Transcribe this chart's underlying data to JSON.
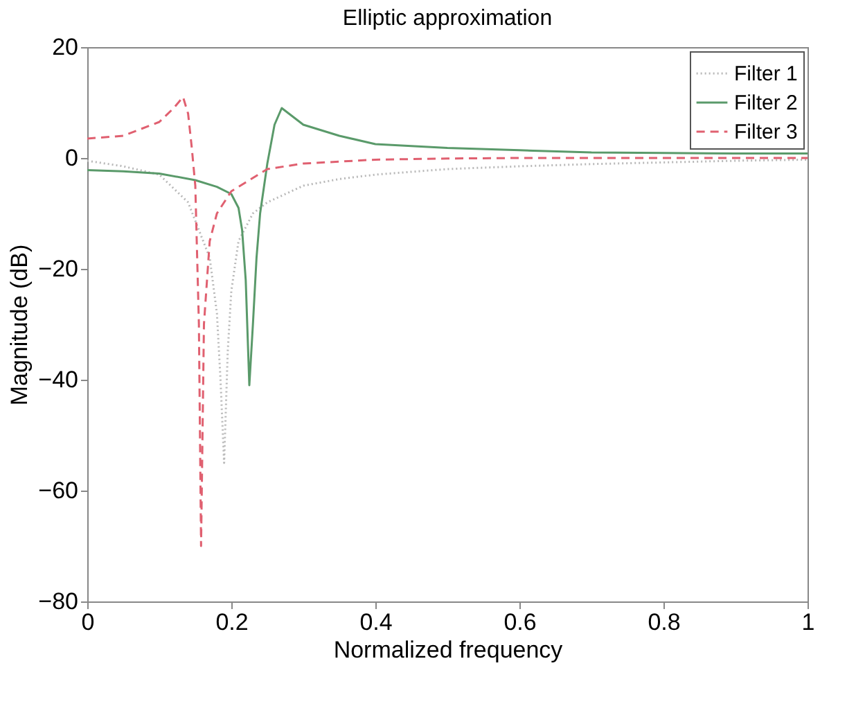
{
  "chart_data": {
    "type": "line",
    "title": "Elliptic approximation",
    "xlabel": "Normalized frequency",
    "ylabel": "Magnitude (dB)",
    "xlim": [
      0,
      1
    ],
    "ylim": [
      -80,
      20
    ],
    "xticks": [
      0,
      0.2,
      0.4,
      0.6,
      0.8,
      1
    ],
    "yticks": [
      -80,
      -60,
      -40,
      -20,
      0,
      20
    ],
    "grid": false,
    "legend": "top right",
    "series": [
      {
        "name": "Filter 1",
        "color": "#b8b8b8",
        "line_style": "dotted",
        "x": [
          0,
          0.05,
          0.1,
          0.14,
          0.17,
          0.18,
          0.185,
          0.19,
          0.195,
          0.2,
          0.21,
          0.23,
          0.25,
          0.3,
          0.35,
          0.4,
          0.5,
          0.6,
          0.7,
          0.8,
          0.9,
          1
        ],
        "values": [
          -0.5,
          -1.5,
          -3,
          -8,
          -18,
          -28,
          -40,
          -55,
          -35,
          -24,
          -15,
          -10,
          -8,
          -5,
          -3.8,
          -3,
          -2,
          -1.5,
          -1.1,
          -0.8,
          -0.5,
          -0.3
        ]
      },
      {
        "name": "Filter 2",
        "color": "#5a9a6a",
        "line_style": "solid",
        "x": [
          0,
          0.05,
          0.1,
          0.15,
          0.18,
          0.2,
          0.21,
          0.215,
          0.22,
          0.225,
          0.23,
          0.235,
          0.24,
          0.25,
          0.26,
          0.27,
          0.28,
          0.3,
          0.35,
          0.4,
          0.5,
          0.6,
          0.7,
          0.8,
          0.9,
          1
        ],
        "values": [
          -2.2,
          -2.4,
          -2.8,
          -4,
          -5.2,
          -6.5,
          -9,
          -13,
          -22,
          -41,
          -30,
          -18,
          -10,
          -1,
          6,
          9,
          8,
          6,
          4,
          2.5,
          1.8,
          1.4,
          1,
          0.9,
          0.8,
          0.8
        ]
      },
      {
        "name": "Filter 3",
        "color": "#e06070",
        "line_style": "dashed",
        "x": [
          0,
          0.05,
          0.1,
          0.12,
          0.133,
          0.14,
          0.145,
          0.15,
          0.155,
          0.158,
          0.162,
          0.17,
          0.18,
          0.2,
          0.25,
          0.3,
          0.4,
          0.5,
          0.6,
          0.8,
          1
        ],
        "values": [
          3.5,
          4,
          6.5,
          9,
          11,
          8,
          2,
          -5,
          -30,
          -70,
          -30,
          -15,
          -10,
          -6,
          -2,
          -1,
          -0.3,
          -0.1,
          0,
          0,
          0
        ]
      }
    ]
  }
}
